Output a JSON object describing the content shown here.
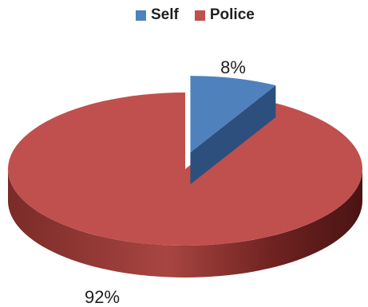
{
  "chart_data": {
    "type": "pie",
    "title": "",
    "categories": [
      "Self",
      "Police"
    ],
    "values": [
      8,
      92
    ],
    "labels": [
      "8%",
      "92%"
    ],
    "colors": [
      "#4f81bd",
      "#c0504d"
    ],
    "legend_position": "top",
    "style": "3d-exploded"
  }
}
